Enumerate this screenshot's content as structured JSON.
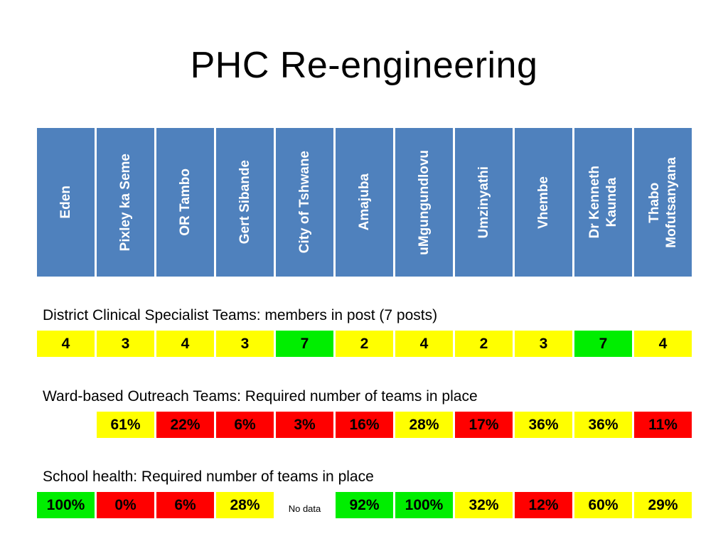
{
  "title": "PHC Re-engineering",
  "districts": [
    "Eden",
    "Pixley ka Seme",
    "OR Tambo",
    "Gert Sibande",
    "City of Tshwane",
    "Amajuba",
    "uMgungundlovu",
    "Umzinyathi",
    "Vhembe",
    "Dr Kenneth\nKaunda",
    "Thabo\nMofutsanyana"
  ],
  "colors": {
    "header_blue": "#4f81bd",
    "yellow": "#ffff00",
    "green": "#00ee00",
    "red": "#ff0000"
  },
  "sections": [
    {
      "label": "District Clinical Specialist Teams: members in post (7 posts)",
      "cells": [
        {
          "value": "4",
          "color": "yellow"
        },
        {
          "value": "3",
          "color": "yellow"
        },
        {
          "value": "4",
          "color": "yellow"
        },
        {
          "value": "3",
          "color": "yellow"
        },
        {
          "value": "7",
          "color": "green"
        },
        {
          "value": "2",
          "color": "yellow"
        },
        {
          "value": "4",
          "color": "yellow"
        },
        {
          "value": "2",
          "color": "yellow"
        },
        {
          "value": "3",
          "color": "yellow"
        },
        {
          "value": "7",
          "color": "green"
        },
        {
          "value": "4",
          "color": "yellow"
        }
      ]
    },
    {
      "label": "Ward-based Outreach Teams: Required number of teams in place",
      "cells": [
        {
          "value": "",
          "color": "empty"
        },
        {
          "value": "61%",
          "color": "yellow"
        },
        {
          "value": "22%",
          "color": "red"
        },
        {
          "value": "6%",
          "color": "red"
        },
        {
          "value": "3%",
          "color": "red"
        },
        {
          "value": "16%",
          "color": "red"
        },
        {
          "value": "28%",
          "color": "yellow"
        },
        {
          "value": "17%",
          "color": "red"
        },
        {
          "value": "36%",
          "color": "yellow"
        },
        {
          "value": "36%",
          "color": "yellow"
        },
        {
          "value": "11%",
          "color": "red"
        }
      ]
    },
    {
      "label": "School health: Required number of teams in place",
      "cells": [
        {
          "value": "100%",
          "color": "green"
        },
        {
          "value": "0%",
          "color": "red"
        },
        {
          "value": "6%",
          "color": "red"
        },
        {
          "value": "28%",
          "color": "yellow"
        },
        {
          "value": "No data",
          "color": "nodata"
        },
        {
          "value": "92%",
          "color": "green"
        },
        {
          "value": "100%",
          "color": "green"
        },
        {
          "value": "32%",
          "color": "yellow"
        },
        {
          "value": "12%",
          "color": "red"
        },
        {
          "value": "60%",
          "color": "yellow"
        },
        {
          "value": "29%",
          "color": "yellow"
        }
      ]
    }
  ]
}
